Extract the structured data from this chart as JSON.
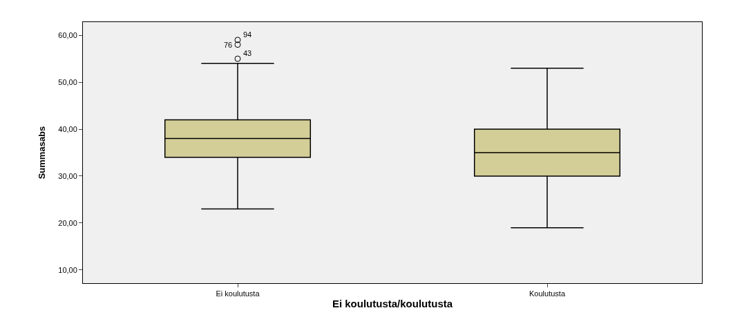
{
  "chart_data": {
    "type": "box",
    "xlabel": "Ei koulutusta/koulutusta",
    "ylabel": "Summasabs",
    "categories": [
      "Ei koulutusta",
      "Koulutusta"
    ],
    "boxes": [
      {
        "low": 23,
        "q1": 34,
        "median": 38,
        "q3": 42,
        "high": 54,
        "outliers": [
          55,
          58,
          59
        ]
      },
      {
        "low": 19,
        "q1": 30,
        "median": 35,
        "q3": 40,
        "high": 53
      }
    ],
    "color": "#d3ce97",
    "ylim": [
      7.2,
      62.8
    ],
    "yticks": [
      {
        "value": 10,
        "label": "10,00"
      },
      {
        "value": 20,
        "label": "20,00"
      },
      {
        "value": 30,
        "label": "30,00"
      },
      {
        "value": 40,
        "label": "40,00"
      },
      {
        "value": 50,
        "label": "50,00"
      },
      {
        "value": 60,
        "label": "60,00"
      }
    ],
    "annotations": [
      "43",
      "76",
      "94"
    ],
    "grid": false
  }
}
